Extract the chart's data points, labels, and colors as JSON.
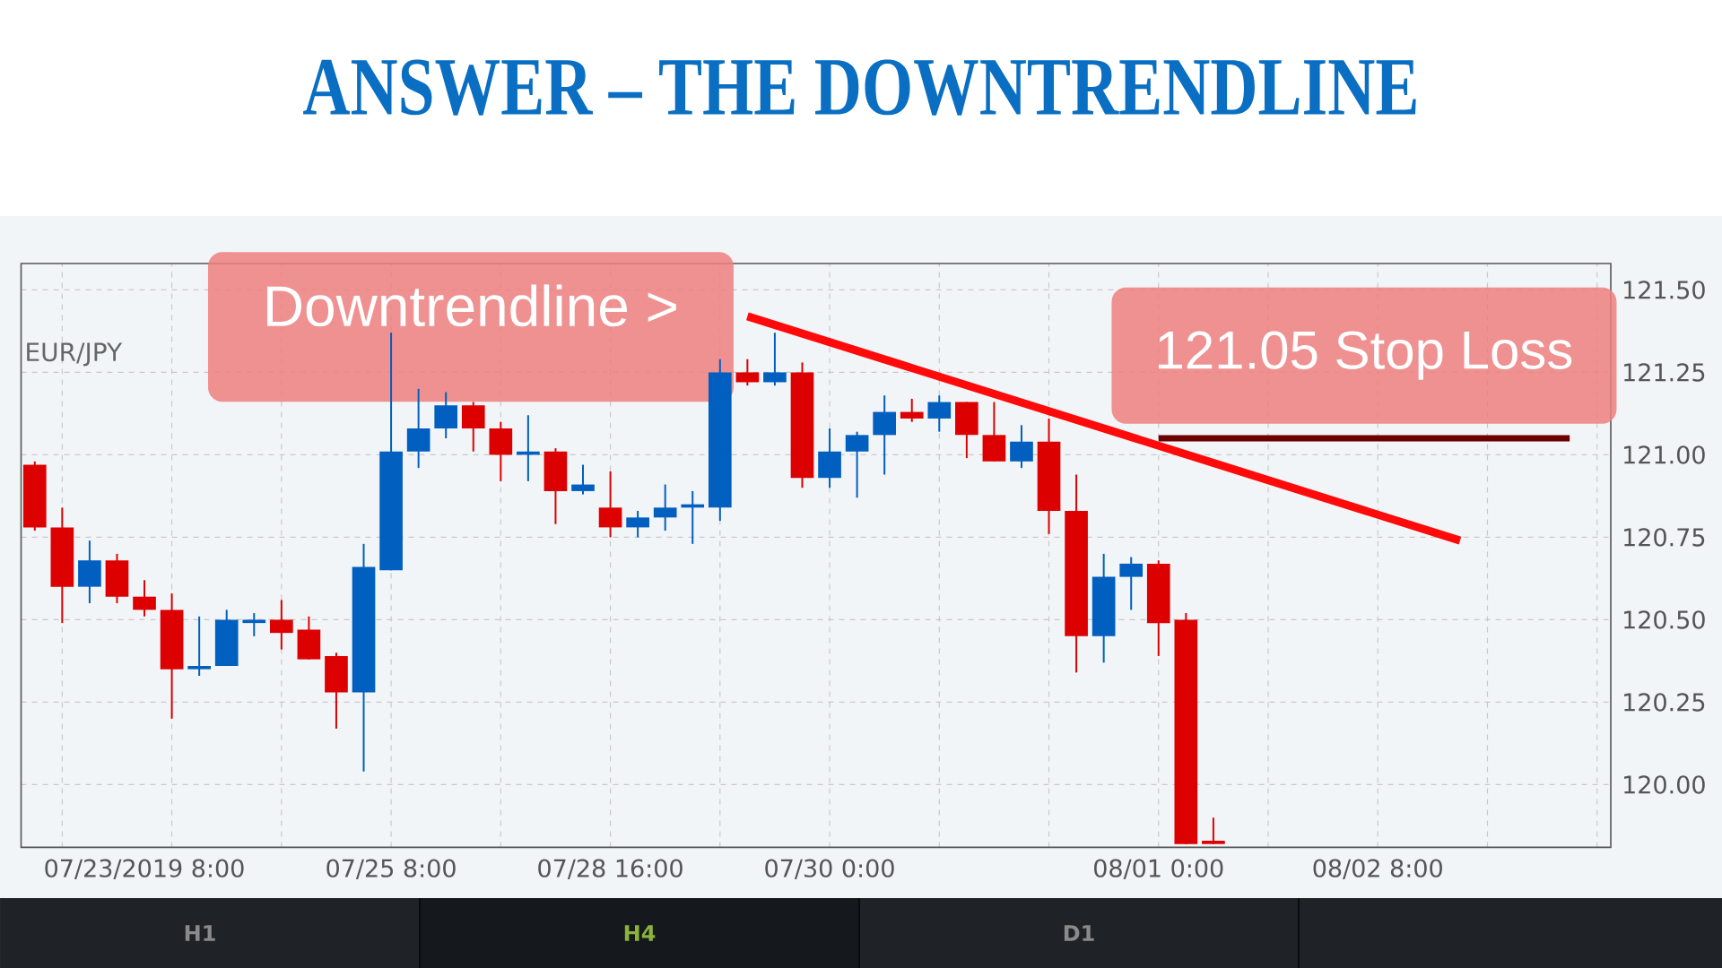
{
  "chart_data": {
    "type": "candlestick",
    "title": "ANSWER – THE DOWNTRENDLINE",
    "categories": [
      null,
      null,
      null,
      null,
      "07/23/2019 8:00",
      null,
      null,
      null,
      null,
      null,
      null,
      null,
      null,
      "07/25 8:00",
      null,
      null,
      null,
      null,
      null,
      null,
      null,
      "07/28 16:00",
      null,
      null,
      null,
      null,
      null,
      null,
      null,
      "07/30 0:00",
      null,
      null,
      null,
      null,
      null,
      null,
      null,
      null,
      null,
      null,
      null,
      "08/01 0:00",
      null,
      null,
      null,
      null,
      null,
      null,
      null,
      "08/02 8:00",
      null,
      null,
      null,
      null,
      null,
      null,
      null,
      null
    ],
    "ohlc": [
      [
        120.97,
        120.98,
        120.77,
        120.78
      ],
      [
        120.78,
        120.84,
        120.49,
        120.6
      ],
      [
        120.6,
        120.74,
        120.55,
        120.68
      ],
      [
        120.68,
        120.7,
        120.55,
        120.57
      ],
      [
        120.57,
        120.62,
        120.51,
        120.53
      ],
      [
        120.53,
        120.58,
        120.2,
        120.35
      ],
      [
        120.35,
        120.51,
        120.33,
        120.36
      ],
      [
        120.36,
        120.53,
        120.36,
        120.5
      ],
      [
        120.49,
        120.52,
        120.45,
        120.5
      ],
      [
        120.5,
        120.56,
        120.41,
        120.46
      ],
      [
        120.47,
        120.51,
        120.38,
        120.38
      ],
      [
        120.39,
        120.4,
        120.17,
        120.28
      ],
      [
        120.28,
        120.73,
        120.04,
        120.66
      ],
      [
        120.65,
        121.37,
        120.65,
        121.01
      ],
      [
        121.01,
        121.2,
        120.96,
        121.08
      ],
      [
        121.08,
        121.19,
        121.05,
        121.15
      ],
      [
        121.15,
        121.16,
        121.01,
        121.08
      ],
      [
        121.08,
        121.1,
        120.92,
        121.0
      ],
      [
        121.0,
        121.12,
        120.92,
        121.01
      ],
      [
        121.01,
        121.02,
        120.79,
        120.89
      ],
      [
        120.89,
        120.97,
        120.88,
        120.91
      ],
      [
        120.84,
        120.95,
        120.75,
        120.78
      ],
      [
        120.78,
        120.83,
        120.75,
        120.81
      ],
      [
        120.81,
        120.91,
        120.77,
        120.84
      ],
      [
        120.84,
        120.89,
        120.73,
        120.85
      ],
      [
        120.84,
        121.29,
        120.8,
        121.25
      ],
      [
        121.25,
        121.29,
        121.21,
        121.22
      ],
      [
        121.22,
        121.37,
        121.21,
        121.25
      ],
      [
        121.25,
        121.28,
        120.9,
        120.93
      ],
      [
        120.93,
        121.08,
        120.9,
        121.01
      ],
      [
        121.01,
        121.07,
        120.87,
        121.06
      ],
      [
        121.06,
        121.18,
        120.94,
        121.13
      ],
      [
        121.13,
        121.17,
        121.1,
        121.11
      ],
      [
        121.11,
        121.18,
        121.07,
        121.16
      ],
      [
        121.16,
        121.16,
        120.99,
        121.06
      ],
      [
        121.06,
        121.16,
        120.98,
        120.98
      ],
      [
        120.98,
        121.09,
        120.96,
        121.04
      ],
      [
        121.04,
        121.11,
        120.76,
        120.83
      ],
      [
        120.83,
        120.94,
        120.34,
        120.45
      ],
      [
        120.45,
        120.7,
        120.37,
        120.63
      ],
      [
        120.63,
        120.69,
        120.53,
        120.67
      ],
      [
        120.67,
        120.68,
        120.39,
        120.49
      ],
      [
        120.5,
        120.52,
        119.82,
        119.82
      ],
      [
        119.83,
        119.9,
        119.82,
        119.82
      ],
      null,
      null,
      null,
      null,
      null,
      null,
      null,
      null,
      null,
      null,
      null,
      null,
      null,
      null
    ],
    "colors": [
      "#dd0000",
      "#dd0000",
      "#005fbf",
      "#dd0000",
      "#dd0000",
      "#dd0000",
      "#005fbf",
      "#005fbf",
      "#005fbf",
      "#dd0000",
      "#dd0000",
      "#dd0000",
      "#005fbf",
      "#005fbf",
      "#005fbf",
      "#005fbf",
      "#dd0000",
      "#dd0000",
      "#005fbf",
      "#dd0000",
      "#005fbf",
      "#dd0000",
      "#005fbf",
      "#005fbf",
      "#005fbf",
      "#005fbf",
      "#dd0000",
      "#005fbf",
      "#dd0000",
      "#005fbf",
      "#005fbf",
      "#005fbf",
      "#dd0000",
      "#005fbf",
      "#dd0000",
      "#dd0000",
      "#005fbf",
      "#dd0000",
      "#dd0000",
      "#005fbf",
      "#005fbf",
      "#dd0000",
      "#dd0000",
      "#dd0000",
      null,
      null,
      null,
      null,
      null,
      null,
      null,
      null,
      null,
      null,
      null,
      null,
      null,
      null
    ],
    "series": [
      {
        "type": "line",
        "color": "#ff0a0a",
        "values": [
          null,
          null,
          null,
          null,
          null,
          null,
          null,
          null,
          null,
          null,
          null,
          null,
          null,
          null,
          null,
          null,
          null,
          null,
          null,
          null,
          null,
          null,
          null,
          null,
          null,
          null,
          121.42,
          null,
          null,
          null,
          null,
          null,
          null,
          null,
          null,
          null,
          null,
          null,
          null,
          null,
          null,
          null,
          null,
          null,
          null,
          null,
          null,
          null,
          null,
          null,
          null,
          null,
          120.74,
          null,
          null,
          null,
          null,
          null
        ]
      },
      {
        "type": "line",
        "color": "#6b0000",
        "values": [
          null,
          null,
          null,
          null,
          null,
          null,
          null,
          null,
          null,
          null,
          null,
          null,
          null,
          null,
          null,
          null,
          null,
          null,
          null,
          null,
          null,
          null,
          null,
          null,
          null,
          null,
          null,
          null,
          null,
          null,
          null,
          null,
          null,
          null,
          null,
          null,
          null,
          null,
          null,
          null,
          null,
          121.05,
          null,
          null,
          null,
          null,
          null,
          null,
          null,
          null,
          null,
          null,
          null,
          null,
          null,
          null,
          121.05,
          null
        ]
      }
    ],
    "annotations": [
      "EUR/JPY",
      "Downtrendline >",
      {
        "text": "121.05 Stop Loss",
        "y": 121.05
      },
      "H1",
      "H4",
      "D1"
    ],
    "ylim": [
      119.81,
      121.58
    ],
    "yticks": [
      {
        "value": 120,
        "label": "120.00"
      },
      {
        "value": 120.25,
        "label": "120.25"
      },
      {
        "value": 120.5,
        "label": "120.50"
      },
      {
        "value": 120.75,
        "label": "120.75"
      },
      {
        "value": 121,
        "label": "121.00"
      },
      {
        "value": 121.25,
        "label": "121.25"
      },
      {
        "value": 121.5,
        "label": "121.50"
      }
    ],
    "grid": true
  }
}
